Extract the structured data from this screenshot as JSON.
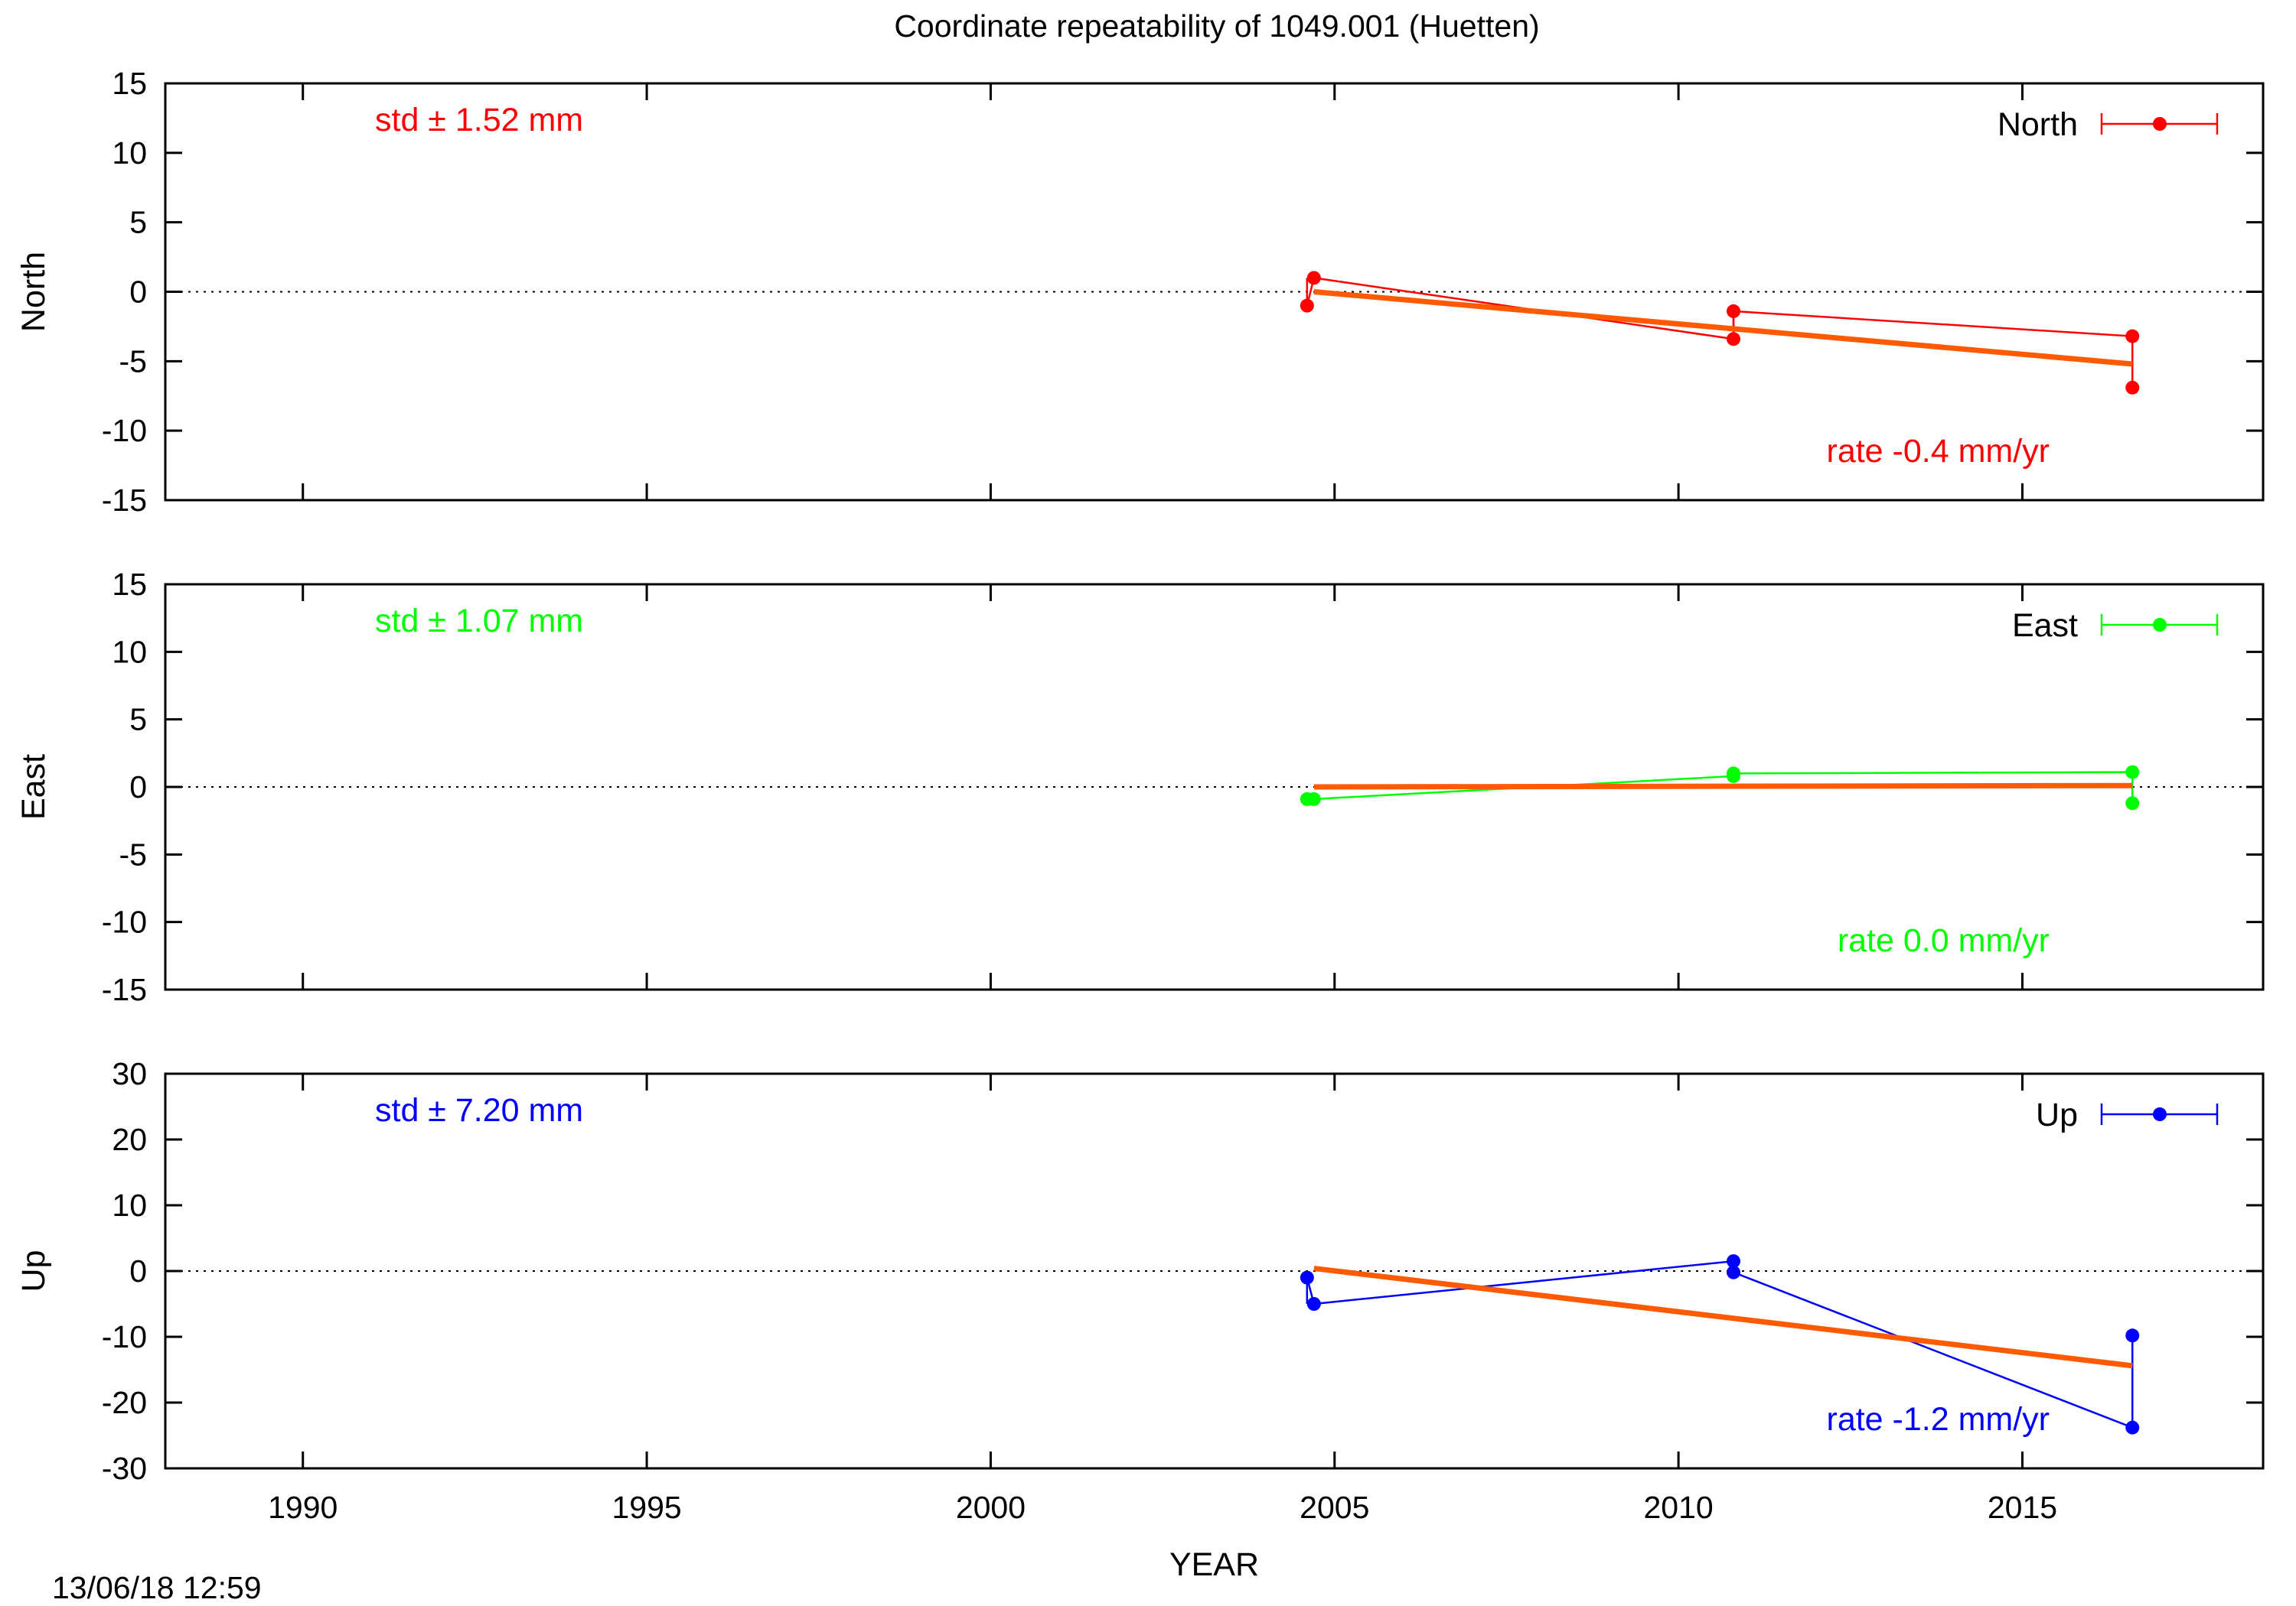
{
  "title": "Coordinate repeatability of 1049.001        (Huetten)",
  "footer_timestamp": "13/06/18 12:59",
  "chart_data": [
    {
      "type": "line",
      "panel": "north",
      "ylabel": "North",
      "xlabel": "",
      "xlim": [
        1988,
        2018.5
      ],
      "ylim": [
        -15,
        15
      ],
      "yticks": [
        15,
        10,
        5,
        0,
        -5,
        -10,
        -15
      ],
      "xticks": [
        1990,
        1995,
        2000,
        2005,
        2010,
        2015
      ],
      "zero_line": true,
      "color": "#ff0000",
      "legend": {
        "label": "North",
        "position": "top-right"
      },
      "std_text": "std ± 1.52 mm",
      "rate_text": "rate -0.4 mm/yr",
      "series": [
        {
          "x": [
            2004.6,
            2004.7,
            2010.8,
            2010.8,
            2016.6,
            2016.6
          ],
          "y": [
            -1.0,
            1.0,
            -3.4,
            -1.4,
            -3.2,
            -6.9
          ]
        }
      ],
      "fit": {
        "x": [
          2004.7,
          2016.6
        ],
        "y": [
          0.0,
          -5.2
        ]
      },
      "errorbars": [
        {
          "x": 2004.6,
          "low": -1.0,
          "high": 1.0
        },
        {
          "x": 2010.8,
          "low": -3.4,
          "high": -1.4
        },
        {
          "x": 2016.6,
          "low": -6.9,
          "high": -3.2
        }
      ]
    },
    {
      "type": "line",
      "panel": "east",
      "ylabel": "East",
      "xlabel": "",
      "xlim": [
        1988,
        2018.5
      ],
      "ylim": [
        -15,
        15
      ],
      "yticks": [
        15,
        10,
        5,
        0,
        -5,
        -10,
        -15
      ],
      "xticks": [
        1990,
        1995,
        2000,
        2005,
        2010,
        2015
      ],
      "zero_line": true,
      "color": "#00ff00",
      "legend": {
        "label": "East",
        "position": "top-right"
      },
      "std_text": "std ± 1.07 mm",
      "rate_text": "rate  0.0 mm/yr",
      "series": [
        {
          "x": [
            2004.6,
            2004.7,
            2010.8,
            2010.8,
            2016.6,
            2016.6
          ],
          "y": [
            -0.9,
            -0.9,
            0.8,
            1.0,
            1.1,
            -1.2
          ]
        }
      ],
      "fit": {
        "x": [
          2004.7,
          2016.6
        ],
        "y": [
          0.0,
          0.1
        ]
      },
      "errorbars": [
        {
          "x": 2010.8,
          "low": 0.8,
          "high": 1.0
        },
        {
          "x": 2016.6,
          "low": -1.2,
          "high": 1.1
        }
      ]
    },
    {
      "type": "line",
      "panel": "up",
      "ylabel": "Up",
      "xlabel": "YEAR",
      "xlim": [
        1988,
        2018.5
      ],
      "ylim": [
        -30,
        30
      ],
      "yticks": [
        30,
        20,
        10,
        0,
        -10,
        -20,
        -30
      ],
      "xticks": [
        1990,
        1995,
        2000,
        2005,
        2010,
        2015
      ],
      "zero_line": true,
      "color": "#0000ff",
      "legend": {
        "label": "Up",
        "position": "top-right"
      },
      "std_text": "std ± 7.20 mm",
      "rate_text": "rate -1.2 mm/yr",
      "series": [
        {
          "x": [
            2004.6,
            2004.7,
            2010.8,
            2010.8,
            2016.6,
            2016.6
          ],
          "y": [
            -1.0,
            -5.0,
            1.5,
            -0.2,
            -23.8,
            -9.8
          ]
        }
      ],
      "fit": {
        "x": [
          2004.7,
          2016.6
        ],
        "y": [
          0.4,
          -14.4
        ]
      },
      "errorbars": [
        {
          "x": 2004.6,
          "low": -5.0,
          "high": -1.0
        },
        {
          "x": 2010.8,
          "low": -0.2,
          "high": 1.5
        },
        {
          "x": 2016.6,
          "low": -23.8,
          "high": -9.8
        }
      ]
    }
  ],
  "fit_color": "#ff5a00"
}
